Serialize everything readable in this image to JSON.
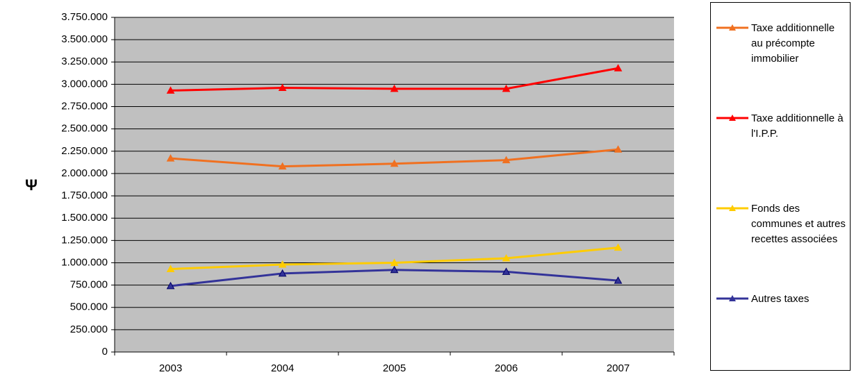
{
  "chart_data": {
    "type": "line",
    "y_label": "Ψ",
    "categories": [
      "2003",
      "2004",
      "2005",
      "2006",
      "2007"
    ],
    "series": [
      {
        "name": "Taxe additionnelle au précompte immobilier",
        "color": "#f07020",
        "values": [
          2170000,
          2080000,
          2110000,
          2150000,
          2270000
        ]
      },
      {
        "name": "Taxe additionnelle à l'I.P.P.",
        "color": "#ff0000",
        "values": [
          2930000,
          2960000,
          2950000,
          2950000,
          3180000
        ]
      },
      {
        "name": "Fonds des communes et autres recettes associées",
        "color": "#ffcc00",
        "values": [
          930000,
          980000,
          1000000,
          1050000,
          1170000
        ]
      },
      {
        "name": "Autres taxes",
        "color": "#333399",
        "values": [
          740000,
          880000,
          920000,
          900000,
          800000
        ]
      }
    ],
    "ylim": [
      0,
      3750000
    ],
    "yticks": [
      0,
      {
        "value": 250000,
        "label": "250.000"
      },
      {
        "value": 500000,
        "label": "500.000"
      },
      {
        "value": 750000,
        "label": "750.000"
      },
      {
        "value": 1000000,
        "label": "1.000.000"
      },
      {
        "value": 1250000,
        "label": "1.250.000"
      },
      {
        "value": 1500000,
        "label": "1.500.000"
      },
      {
        "value": 1750000,
        "label": "1.750.000"
      },
      {
        "value": 2000000,
        "label": "2.000.000"
      },
      {
        "value": 2250000,
        "label": "2.250.000"
      },
      {
        "value": 2500000,
        "label": "2.500.000"
      },
      {
        "value": 2750000,
        "label": "2.750.000"
      },
      {
        "value": 3000000,
        "label": "3.000.000"
      },
      {
        "value": 3250000,
        "label": "3.250.000"
      },
      {
        "value": 3500000,
        "label": "3.500.000"
      },
      {
        "value": 3750000,
        "label": "3.750.000"
      }
    ],
    "grid": true,
    "legend": "right"
  }
}
